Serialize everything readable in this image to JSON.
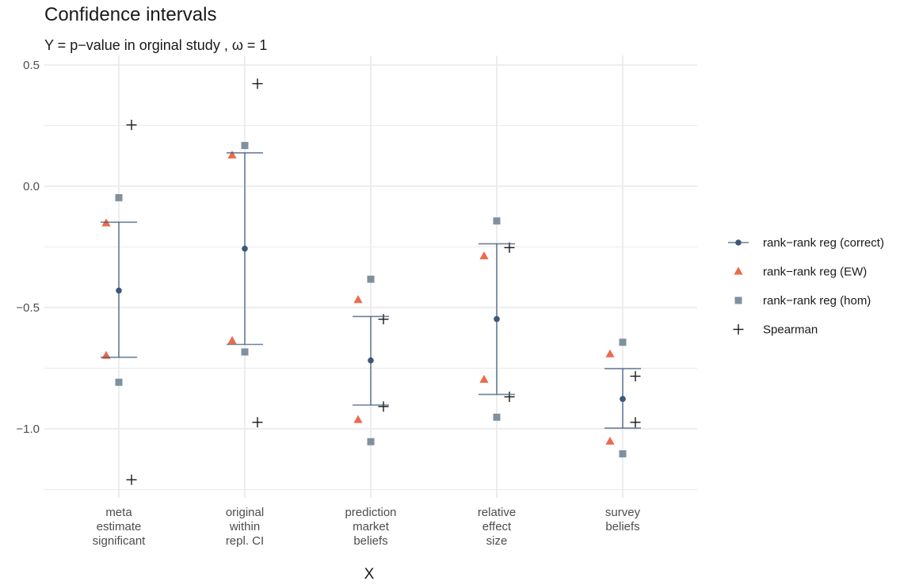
{
  "chart_data": {
    "type": "scatter",
    "title": "Confidence intervals",
    "subtitle": "Y = p−value in orginal study , ω = 1",
    "xlabel": "X",
    "ylabel": "",
    "ylim": [
      -1.27,
      0.5
    ],
    "yticks": [
      "0.5",
      "0.0",
      "−0.5",
      "−1.0"
    ],
    "grid": true,
    "legend_position": "right",
    "categories": [
      [
        "meta",
        "estimate",
        "significant"
      ],
      [
        "original",
        "within",
        "repl. CI"
      ],
      [
        "prediction",
        "market",
        "beliefs"
      ],
      [
        "relative",
        "effect",
        "size"
      ],
      [
        "survey",
        "beliefs"
      ]
    ],
    "series": [
      {
        "name": "rank−rank reg (correct)",
        "marker": "circle-errorbar",
        "color": "#3b5878",
        "values": [
          {
            "point": -0.43,
            "lower": -0.705,
            "upper": -0.148
          },
          {
            "point": -0.257,
            "lower": -0.652,
            "upper": 0.138
          },
          {
            "point": -0.718,
            "lower": -0.902,
            "upper": -0.537
          },
          {
            "point": -0.547,
            "lower": -0.858,
            "upper": -0.237
          },
          {
            "point": -0.877,
            "lower": -0.997,
            "upper": -0.752
          }
        ]
      },
      {
        "name": "rank−rank reg (EW)",
        "marker": "triangle",
        "color": "#ee6a4a",
        "values": [
          [
            -0.152,
            -0.698
          ],
          [
            0.128,
            -0.637
          ],
          [
            -0.468,
            -0.963
          ],
          [
            -0.288,
            -0.797
          ],
          [
            -0.692,
            -1.052
          ]
        ]
      },
      {
        "name": "rank−rank reg (hom)",
        "marker": "square",
        "color": "#7f919e",
        "values": [
          [
            -0.047,
            -0.808
          ],
          [
            0.168,
            -0.683
          ],
          [
            -0.383,
            -1.053
          ],
          [
            -0.143,
            -0.952
          ],
          [
            -0.643,
            -1.103
          ]
        ]
      },
      {
        "name": "Spearman",
        "marker": "plus",
        "color": "#1a1a1a",
        "values": [
          [
            0.253,
            -1.21
          ],
          [
            0.423,
            -0.973
          ],
          [
            -0.548,
            -0.908
          ],
          [
            -0.253,
            -0.868
          ],
          [
            -0.783,
            -0.973
          ]
        ]
      }
    ],
    "colors": {
      "grid": "#ebebeb",
      "tick_text": "#4d4d4d"
    }
  }
}
